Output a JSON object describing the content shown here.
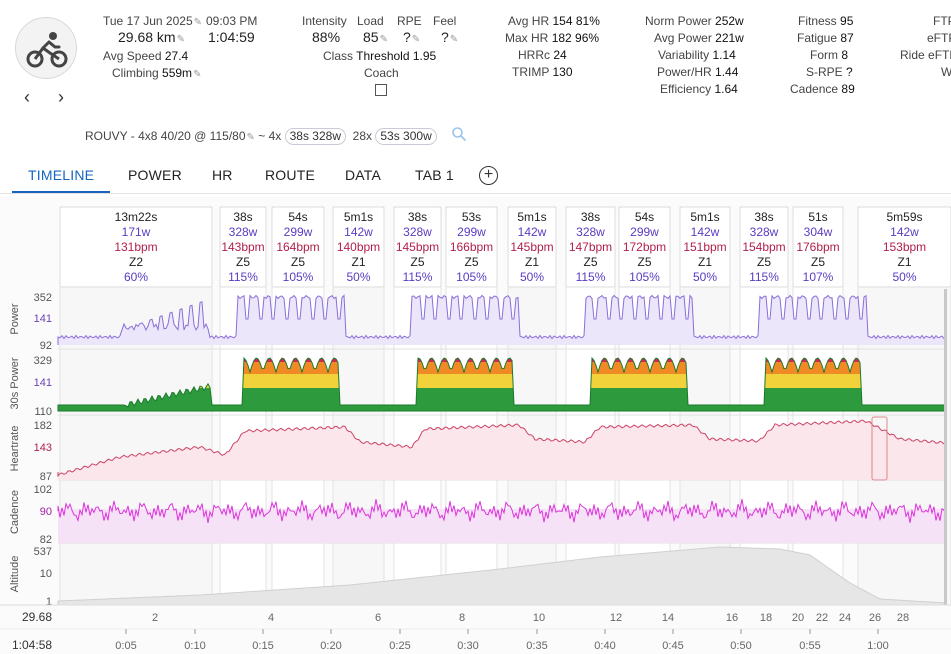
{
  "header": {
    "date": "Tue 17 Jun 2025",
    "time": "09:03 PM",
    "distance": "29.68 km",
    "duration": "1:04:59",
    "avg_speed_label": "Avg Speed",
    "avg_speed": "27.4",
    "climbing_label": "Climbing",
    "climbing": "559m",
    "intensity_label": "Intensity",
    "intensity": "88%",
    "load_label": "Load",
    "load": "85",
    "rpe_label": "RPE",
    "rpe": "?",
    "feel_label": "Feel",
    "feel": "?",
    "class_label": "Class",
    "class_value": "Threshold 1.95",
    "coach_label": "Coach",
    "avg_hr_label": "Avg HR",
    "avg_hr": "154 81%",
    "max_hr_label": "Max HR",
    "max_hr": "182 96%",
    "hrrc_label": "HRRc",
    "hrrc": "24",
    "trimp_label": "TRIMP",
    "trimp": "130",
    "norm_power_label": "Norm Power",
    "norm_power": "252w",
    "avg_power_label": "Avg Power",
    "avg_power": "221w",
    "variability_label": "Variability",
    "variability": "1.14",
    "power_hr_label": "Power/HR",
    "power_hr": "1.44",
    "efficiency_label": "Efficiency",
    "efficiency": "1.64",
    "fitness_label": "Fitness",
    "fitness": "95",
    "fatigue_label": "Fatigue",
    "fatigue": "87",
    "form_label": "Form",
    "form": "8",
    "srpe_label": "S-RPE",
    "srpe": "?",
    "cadence_label": "Cadence",
    "cadence": "89",
    "ftp_label": "FTP",
    "eftp_label": "eFTP",
    "ride_eftp_label": "Ride eFTP",
    "w_label": "W",
    "workout_name": "ROUVY - 4x8 40/20 @ 115/80",
    "workout_sep": "~",
    "rep1": "4x",
    "chip1": "38s 328w",
    "rep2": "28x",
    "chip2": "53s 300w"
  },
  "tabs": [
    "TIMELINE",
    "POWER",
    "HR",
    "ROUTE",
    "DATA",
    "TAB 1"
  ],
  "intervals": [
    {
      "dur": "13m22s",
      "pw": "171w",
      "hr": "131bpm",
      "zone": "Z2",
      "pct": "60%"
    },
    {
      "dur": "38s",
      "pw": "328w",
      "hr": "143bpm",
      "zone": "Z5",
      "pct": "115%"
    },
    {
      "dur": "54s",
      "pw": "299w",
      "hr": "164bpm",
      "zone": "Z5",
      "pct": "105%"
    },
    {
      "dur": "5m1s",
      "pw": "142w",
      "hr": "140bpm",
      "zone": "Z1",
      "pct": "50%"
    },
    {
      "dur": "38s",
      "pw": "328w",
      "hr": "145bpm",
      "zone": "Z5",
      "pct": "115%"
    },
    {
      "dur": "53s",
      "pw": "299w",
      "hr": "166bpm",
      "zone": "Z5",
      "pct": "105%"
    },
    {
      "dur": "5m1s",
      "pw": "142w",
      "hr": "145bpm",
      "zone": "Z1",
      "pct": "50%"
    },
    {
      "dur": "38s",
      "pw": "328w",
      "hr": "147bpm",
      "zone": "Z5",
      "pct": "115%"
    },
    {
      "dur": "54s",
      "pw": "299w",
      "hr": "172bpm",
      "zone": "Z5",
      "pct": "105%"
    },
    {
      "dur": "5m1s",
      "pw": "142w",
      "hr": "151bpm",
      "zone": "Z1",
      "pct": "50%"
    },
    {
      "dur": "38s",
      "pw": "328w",
      "hr": "154bpm",
      "zone": "Z5",
      "pct": "115%"
    },
    {
      "dur": "51s",
      "pw": "304w",
      "hr": "176bpm",
      "zone": "Z5",
      "pct": "107%"
    },
    {
      "dur": "5m59s",
      "pw": "142w",
      "hr": "153bpm",
      "zone": "Z1",
      "pct": "50%"
    }
  ],
  "tracks": {
    "power": {
      "label": "Power",
      "ticks": [
        "352",
        "141",
        "92"
      ]
    },
    "p30": {
      "label": "30s Power",
      "ticks": [
        "329",
        "141",
        "110"
      ]
    },
    "hr": {
      "label": "Heartrate",
      "ticks": [
        "182",
        "143",
        "87"
      ]
    },
    "cad": {
      "label": "Cadence",
      "ticks": [
        "102",
        "90",
        "82"
      ]
    },
    "alt": {
      "label": "Altitude",
      "ticks": [
        "537",
        "10",
        "1"
      ]
    }
  },
  "distance_axis": {
    "start": "29.68",
    "labels": [
      "2",
      "4",
      "6",
      "8",
      "10",
      "12",
      "14",
      "16",
      "18",
      "20",
      "22",
      "24",
      "26",
      "28"
    ]
  },
  "time_axis": {
    "start": "1:04:58",
    "labels": [
      "0:05",
      "0:10",
      "0:15",
      "0:20",
      "0:25",
      "0:30",
      "0:35",
      "0:40",
      "0:45",
      "0:50",
      "0:55",
      "1:00"
    ]
  },
  "colors": {
    "accent": "#1565c0",
    "power": "#8a6ed8",
    "hr": "#cc4466",
    "cadence": "#dd33dd",
    "interval_power": "#5a3cc0",
    "interval_hr": "#b01f4a",
    "altitude_fill": "#e6e6e6"
  }
}
